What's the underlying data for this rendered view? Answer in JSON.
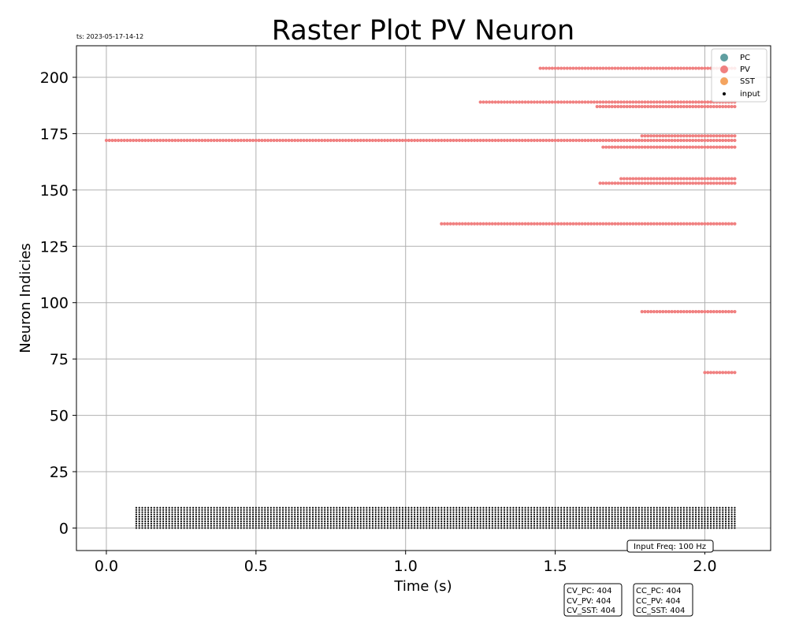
{
  "chart_data": {
    "type": "scatter",
    "title": "Raster Plot PV Neuron",
    "timestamp": "ts: 2023-05-17-14-12",
    "xlabel": "Time (s)",
    "ylabel": "Neuron Indicies",
    "xlim": [
      -0.1,
      2.22
    ],
    "ylim": [
      -10,
      214
    ],
    "xticks": [
      0.0,
      0.5,
      1.0,
      1.5,
      2.0
    ],
    "xtick_labels": [
      "0.0",
      "0.5",
      "1.0",
      "1.5",
      "2.0"
    ],
    "yticks": [
      0,
      25,
      50,
      75,
      100,
      125,
      150,
      175,
      200
    ],
    "ytick_labels": [
      "0",
      "25",
      "50",
      "75",
      "100",
      "125",
      "150",
      "175",
      "200"
    ],
    "grid": true,
    "legend_position": "top-right",
    "legend": [
      {
        "label": "PC",
        "color": "#5f9ea0"
      },
      {
        "label": "PV",
        "color": "#f08080"
      },
      {
        "label": "SST",
        "color": "#f4a460"
      },
      {
        "label": "input",
        "color": "#000000"
      }
    ],
    "series": [
      {
        "name": "PV",
        "color": "#f08080",
        "trains": [
          {
            "neuron": 204,
            "t_start": 1.45,
            "t_end": 2.1,
            "isi": 0.01
          },
          {
            "neuron": 189,
            "t_start": 1.25,
            "t_end": 2.1,
            "isi": 0.01
          },
          {
            "neuron": 187,
            "t_start": 1.64,
            "t_end": 2.1,
            "isi": 0.01
          },
          {
            "neuron": 174,
            "t_start": 1.79,
            "t_end": 2.1,
            "isi": 0.01
          },
          {
            "neuron": 172,
            "t_start": 0.0,
            "t_end": 2.1,
            "isi": 0.01
          },
          {
            "neuron": 169,
            "t_start": 1.66,
            "t_end": 2.1,
            "isi": 0.01
          },
          {
            "neuron": 155,
            "t_start": 1.72,
            "t_end": 2.1,
            "isi": 0.01
          },
          {
            "neuron": 153,
            "t_start": 1.65,
            "t_end": 2.1,
            "isi": 0.01
          },
          {
            "neuron": 135,
            "t_start": 1.12,
            "t_end": 2.1,
            "isi": 0.01
          },
          {
            "neuron": 96,
            "t_start": 1.79,
            "t_end": 2.1,
            "isi": 0.01
          },
          {
            "neuron": 69,
            "t_start": 2.0,
            "t_end": 2.1,
            "isi": 0.01
          }
        ]
      },
      {
        "name": "input",
        "color": "#000000",
        "neurons": [
          0,
          1,
          2,
          3,
          4,
          5,
          6,
          7,
          8,
          9
        ],
        "t_start": 0.1,
        "t_end": 2.1,
        "isi": 0.01
      }
    ],
    "annotations": {
      "input_freq": "Input Freq: 100 Hz",
      "cv": [
        "CV_PC: 404",
        "CV_PV: 404",
        "CV_SST: 404"
      ],
      "cc": [
        "CC_PC: 404",
        "CC_PV: 404",
        "CC_SST: 404"
      ]
    }
  }
}
